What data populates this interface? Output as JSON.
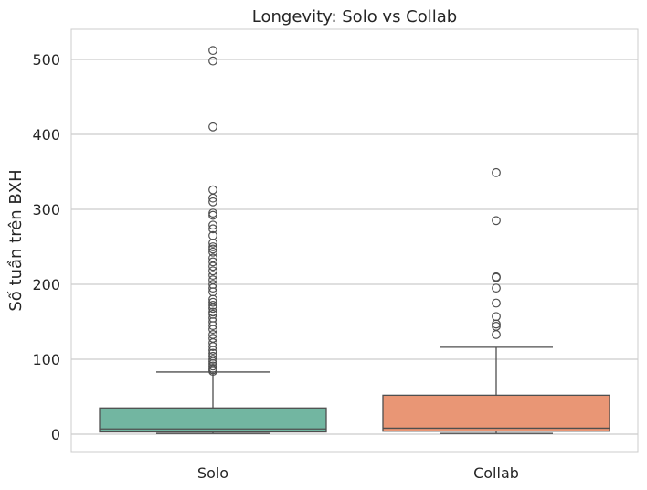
{
  "chart_data": {
    "type": "box",
    "title": "Longevity: Solo vs Collab",
    "xlabel": "",
    "ylabel": "Số tuần trên BXH",
    "ylim": [
      -25,
      538
    ],
    "yticks": [
      0,
      100,
      200,
      300,
      400,
      500
    ],
    "grid": "horizontal",
    "legend": "none",
    "categories": [
      "Solo",
      "Collab"
    ],
    "series": [
      {
        "category": "Solo",
        "color": "#72b6a1",
        "whisker_low": 1,
        "q1": 3,
        "median": 7,
        "q3": 35,
        "whisker_high": 83,
        "outliers": [
          512,
          498,
          410,
          326,
          315,
          310,
          295,
          292,
          279,
          274,
          265,
          255,
          250,
          247,
          243,
          235,
          230,
          224,
          218,
          212,
          206,
          200,
          195,
          190,
          180,
          176,
          172,
          168,
          163,
          160,
          155,
          150,
          145,
          140,
          133,
          128,
          122,
          117,
          112,
          108,
          104,
          100,
          97,
          94,
          91,
          88,
          86,
          84
        ]
      },
      {
        "category": "Collab",
        "color": "#e99675",
        "whisker_low": 1,
        "q1": 4,
        "median": 8,
        "q3": 52,
        "whisker_high": 116,
        "outliers": [
          349,
          285,
          210,
          209,
          195,
          175,
          157,
          147,
          144,
          133
        ]
      }
    ]
  }
}
